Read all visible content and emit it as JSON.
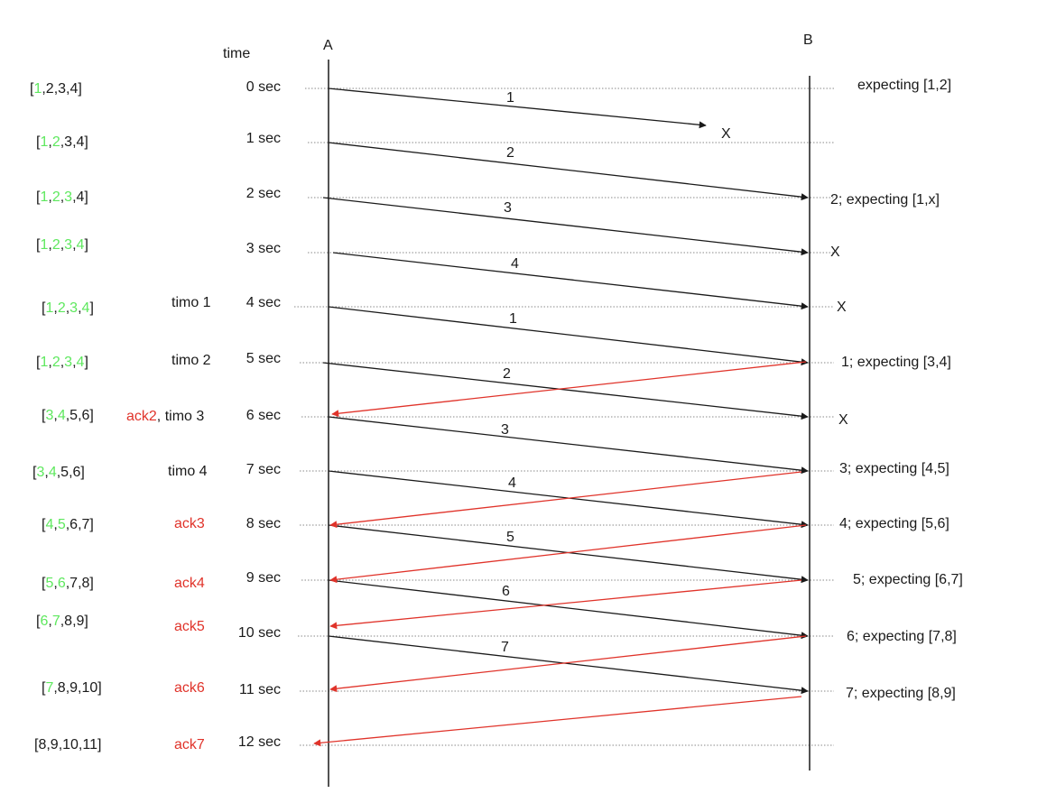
{
  "colors": {
    "black": "#1a1a1a",
    "red": "#e0332a",
    "green": "#5ee85e",
    "dotted": "#8a8a8a"
  },
  "header": {
    "time_label": "time",
    "host_a_label": "A",
    "host_b_label": "B"
  },
  "rows": [
    {
      "time": "0 sec",
      "event": [],
      "window": [
        {
          "t": "[",
          "c": ""
        },
        {
          "t": "1",
          "c": "green"
        },
        {
          "t": ",2,3,4]",
          "c": ""
        }
      ],
      "receiver": "expecting [1,2]"
    },
    {
      "time": "1 sec",
      "event": [],
      "window": [
        {
          "t": "[",
          "c": ""
        },
        {
          "t": "1",
          "c": "green"
        },
        {
          "t": ",",
          "c": ""
        },
        {
          "t": "2",
          "c": "green"
        },
        {
          "t": ",3,4]",
          "c": ""
        }
      ],
      "receiver": ""
    },
    {
      "time": "2 sec",
      "event": [],
      "window": [
        {
          "t": "[",
          "c": ""
        },
        {
          "t": "1",
          "c": "green"
        },
        {
          "t": ",",
          "c": ""
        },
        {
          "t": "2",
          "c": "green"
        },
        {
          "t": ",",
          "c": ""
        },
        {
          "t": "3",
          "c": "green"
        },
        {
          "t": ",4]",
          "c": ""
        }
      ],
      "receiver": "2; expecting [1,x]"
    },
    {
      "time": "3 sec",
      "event": [],
      "window": [
        {
          "t": "[",
          "c": ""
        },
        {
          "t": "1",
          "c": "green"
        },
        {
          "t": ",",
          "c": ""
        },
        {
          "t": "2",
          "c": "green"
        },
        {
          "t": ",",
          "c": ""
        },
        {
          "t": "3",
          "c": "green"
        },
        {
          "t": ",",
          "c": ""
        },
        {
          "t": "4",
          "c": "green"
        },
        {
          "t": "]",
          "c": ""
        }
      ],
      "receiver": "X"
    },
    {
      "time": "4 sec",
      "event": [
        {
          "t": "timo 1",
          "c": ""
        }
      ],
      "window": [
        {
          "t": "[",
          "c": ""
        },
        {
          "t": "1",
          "c": "green"
        },
        {
          "t": ",",
          "c": ""
        },
        {
          "t": "2",
          "c": "green"
        },
        {
          "t": ",",
          "c": ""
        },
        {
          "t": "3",
          "c": "green"
        },
        {
          "t": ",",
          "c": ""
        },
        {
          "t": "4",
          "c": "green"
        },
        {
          "t": "]",
          "c": ""
        }
      ],
      "receiver": "X"
    },
    {
      "time": "5 sec",
      "event": [
        {
          "t": "timo 2",
          "c": ""
        }
      ],
      "window": [
        {
          "t": "[",
          "c": ""
        },
        {
          "t": "1",
          "c": "green"
        },
        {
          "t": ",",
          "c": ""
        },
        {
          "t": "2",
          "c": "green"
        },
        {
          "t": ",",
          "c": ""
        },
        {
          "t": "3",
          "c": "green"
        },
        {
          "t": ",",
          "c": ""
        },
        {
          "t": "4",
          "c": "green"
        },
        {
          "t": "]",
          "c": ""
        }
      ],
      "receiver": "1; expecting [3,4]"
    },
    {
      "time": "6 sec",
      "event": [
        {
          "t": "ack2",
          "c": "red"
        },
        {
          "t": ", timo 3",
          "c": ""
        }
      ],
      "window": [
        {
          "t": "[",
          "c": ""
        },
        {
          "t": "3",
          "c": "green"
        },
        {
          "t": ",",
          "c": ""
        },
        {
          "t": "4",
          "c": "green"
        },
        {
          "t": ",5,6]",
          "c": ""
        }
      ],
      "receiver": "X"
    },
    {
      "time": "7 sec",
      "event": [
        {
          "t": "timo 4",
          "c": ""
        }
      ],
      "window": [
        {
          "t": "[",
          "c": ""
        },
        {
          "t": "3",
          "c": "green"
        },
        {
          "t": ",",
          "c": ""
        },
        {
          "t": "4",
          "c": "green"
        },
        {
          "t": ",5,6]",
          "c": ""
        }
      ],
      "receiver": "3; expecting [4,5]"
    },
    {
      "time": "8 sec",
      "event": [
        {
          "t": "ack3",
          "c": "red"
        }
      ],
      "window": [
        {
          "t": "[",
          "c": ""
        },
        {
          "t": "4",
          "c": "green"
        },
        {
          "t": ",",
          "c": ""
        },
        {
          "t": "5",
          "c": "green"
        },
        {
          "t": ",6,7]",
          "c": ""
        }
      ],
      "receiver": "4; expecting [5,6]"
    },
    {
      "time": "9 sec",
      "event": [
        {
          "t": "ack4",
          "c": "red"
        }
      ],
      "window": [
        {
          "t": "[",
          "c": ""
        },
        {
          "t": "5",
          "c": "green"
        },
        {
          "t": ",",
          "c": ""
        },
        {
          "t": "6",
          "c": "green"
        },
        {
          "t": ",7,8]",
          "c": ""
        }
      ],
      "receiver": "5; expecting [6,7]"
    },
    {
      "time": "10 sec",
      "event": [
        {
          "t": "ack5",
          "c": "red"
        }
      ],
      "window": [
        {
          "t": "[",
          "c": ""
        },
        {
          "t": "6",
          "c": "green"
        },
        {
          "t": ",",
          "c": ""
        },
        {
          "t": "7",
          "c": "green"
        },
        {
          "t": ",8,9]",
          "c": ""
        }
      ],
      "receiver": "6; expecting [7,8]"
    },
    {
      "time": "11 sec",
      "event": [
        {
          "t": "ack6",
          "c": "red"
        }
      ],
      "window": [
        {
          "t": "[",
          "c": ""
        },
        {
          "t": "7",
          "c": "green"
        },
        {
          "t": ",8,9,10]",
          "c": ""
        }
      ],
      "receiver": "7; expecting [8,9]"
    },
    {
      "time": "12 sec",
      "event": [
        {
          "t": "ack7",
          "c": "red"
        }
      ],
      "window": [
        {
          "t": "[8,9,10,11]",
          "c": ""
        }
      ],
      "receiver": ""
    }
  ],
  "extra_marks": [
    {
      "text": "X"
    }
  ],
  "packets": [
    {
      "label": "1",
      "from_row": 0,
      "to_row": 1,
      "lost": true
    },
    {
      "label": "2",
      "from_row": 1,
      "to_row": 2
    },
    {
      "label": "3",
      "from_row": 2,
      "to_row": 3
    },
    {
      "label": "4",
      "from_row": 3,
      "to_row": 4
    },
    {
      "label": "1",
      "from_row": 4,
      "to_row": 5
    },
    {
      "label": "2",
      "from_row": 5,
      "to_row": 6
    },
    {
      "label": "3",
      "from_row": 6,
      "to_row": 7
    },
    {
      "label": "4",
      "from_row": 7,
      "to_row": 8
    },
    {
      "label": "5",
      "from_row": 8,
      "to_row": 9
    },
    {
      "label": "6",
      "from_row": 9,
      "to_row": 10
    },
    {
      "label": "7",
      "from_row": 10,
      "to_row": 11
    }
  ],
  "acks": [
    {
      "from_row": 5,
      "to_row": 6
    },
    {
      "from_row": 7,
      "to_row": 8
    },
    {
      "from_row": 8,
      "to_row": 9
    },
    {
      "from_row": 9,
      "to_row": 10
    },
    {
      "from_row": 10,
      "to_row": 11
    },
    {
      "from_row": 11,
      "to_row": 12
    }
  ]
}
